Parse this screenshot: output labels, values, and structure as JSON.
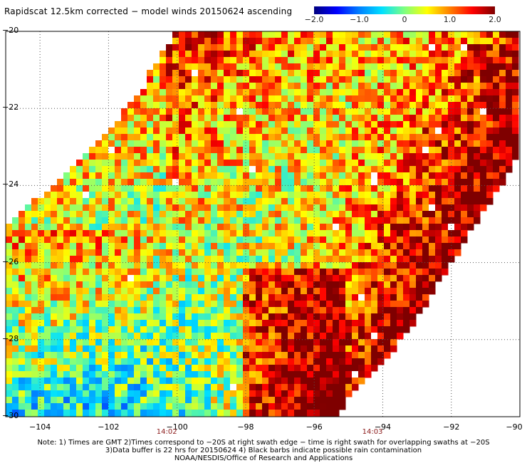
{
  "title": "Rapidscat 12.5km corrected − model winds 20150624 ascending",
  "colorbar": {
    "ticks": [
      "−2.0",
      "−1.0",
      "0",
      "1.0",
      "2.0"
    ],
    "tick_values": [
      -2.0,
      -1.0,
      0,
      1.0,
      2.0
    ],
    "range": [
      -2.0,
      2.0
    ],
    "colors": [
      "#00007f",
      "#0000ff",
      "#0080ff",
      "#00e0ff",
      "#7fff7f",
      "#ffff00",
      "#ff8000",
      "#ff0000",
      "#7f0000"
    ]
  },
  "axes": {
    "lon_ticks": [
      "−104",
      "−102",
      "−100",
      "−98",
      "−96",
      "−94",
      "−92",
      "−90"
    ],
    "lon_values": [
      -104,
      -102,
      -100,
      -98,
      -96,
      -94,
      -92,
      -90
    ],
    "lat_ticks": [
      "−20",
      "−22",
      "−24",
      "−26",
      "−28",
      "−30"
    ],
    "lat_values": [
      -20,
      -22,
      -24,
      -26,
      -28,
      -30
    ],
    "lon_range": [
      -105,
      -90
    ],
    "lat_range": [
      -30,
      -20
    ]
  },
  "time_labels": [
    {
      "text": "14:02",
      "lon": -100.3
    },
    {
      "text": "14:03",
      "lon": -94.3
    }
  ],
  "notes": [
    "Note: 1) Times are GMT 2)Times correspond to −20S at right swath edge − time is right swath for overlapping swaths at −20S",
    "3)Data buffer is 22 hrs for 20150624 4) Black barbs indicate possible rain contamination",
    "NOAA/NESDIS/Office of Research and Applications"
  ],
  "colors": {
    "background": "#ffffff",
    "grid": "#555555",
    "time_label": "#8b1a1a"
  }
}
